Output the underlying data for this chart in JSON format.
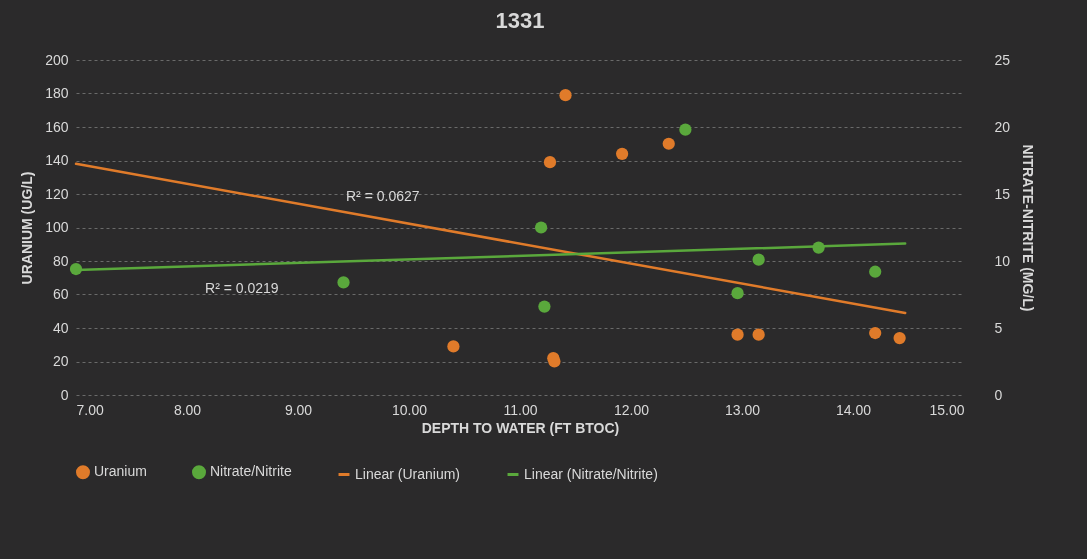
{
  "chart_data": {
    "type": "scatter",
    "title": "1331",
    "xlabel": "DEPTH TO WATER (FT BTOC)",
    "ylabel": "URANIUM (UG/L)",
    "y2label": "NITRATE-NITRITE (MG/L)",
    "xlim": [
      7,
      15
    ],
    "xticks": [
      {
        "value": 7,
        "label": "7.00"
      },
      {
        "value": 8,
        "label": "8.00"
      },
      {
        "value": 9,
        "label": "9.00"
      },
      {
        "value": 10,
        "label": "10.00"
      },
      {
        "value": 11,
        "label": "11.00"
      },
      {
        "value": 12,
        "label": "12.00"
      },
      {
        "value": 13,
        "label": "13.00"
      },
      {
        "value": 14,
        "label": "14.00"
      },
      {
        "value": 15,
        "label": "15.00"
      }
    ],
    "ylim": [
      0,
      200
    ],
    "yticks": [
      0,
      20,
      40,
      60,
      80,
      100,
      120,
      140,
      160,
      180,
      200
    ],
    "y2lim": [
      0,
      25
    ],
    "y2ticks": [
      0,
      5,
      10,
      15,
      20,
      25
    ],
    "grid": "y",
    "legend": "bottom",
    "series": [
      {
        "name": "Uranium",
        "color": "#e07b2a",
        "marker": "circle",
        "x": [
          10.4,
          11.27,
          11.3,
          11.31,
          11.41,
          11.92,
          12.34,
          12.96,
          13.15,
          14.2,
          14.42
        ],
        "values": [
          29,
          139,
          22,
          20,
          179,
          144,
          150,
          36,
          36,
          37,
          34
        ]
      },
      {
        "name": "Nitrate/Nitrite",
        "color": "#5aa83c",
        "marker": "circle",
        "axis": "y2",
        "x": [
          7.0,
          9.41,
          11.19,
          11.22,
          12.49,
          12.96,
          13.15,
          13.69,
          14.2
        ],
        "values": [
          9.4,
          8.4,
          12.5,
          6.6,
          19.8,
          7.6,
          10.1,
          11.0,
          9.2
        ]
      },
      {
        "name": "Linear (Uranium)",
        "type": "line",
        "color": "#e07b2a",
        "x": [
          7.0,
          14.47
        ],
        "values": [
          138,
          49
        ]
      },
      {
        "name": "Linear (Nitrate/Nitrite)",
        "type": "line",
        "color": "#5aa83c",
        "axis": "y2",
        "x": [
          7.0,
          14.47
        ],
        "values": [
          9.33,
          11.3
        ]
      }
    ],
    "annotations": [
      "R² = 0.0627",
      "R² = 0.0219"
    ]
  }
}
